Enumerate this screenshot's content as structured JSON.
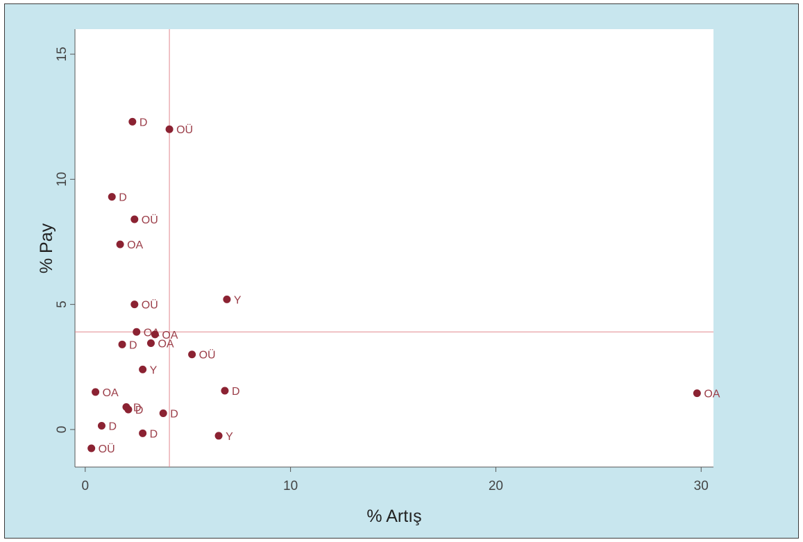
{
  "chart_data": {
    "type": "scatter",
    "xlabel": "% Artış",
    "ylabel": "% Pay",
    "xlim": [
      -0.5,
      30.6
    ],
    "ylim": [
      -1.5,
      16
    ],
    "xticks": [
      "0",
      "10",
      "20",
      "30"
    ],
    "xtick_values": [
      0,
      10,
      20,
      30
    ],
    "yticks": [
      "0",
      "5",
      "10",
      "15"
    ],
    "ytick_values": [
      0,
      5,
      10,
      15
    ],
    "grid": false,
    "reference_lines": {
      "x": 4.1,
      "y": 3.9
    },
    "colors": {
      "background": "#c8e6ee",
      "plot_background": "#ffffff",
      "marker": "#8b2232",
      "label": "#9b3d48",
      "reference_line": "#e2888e",
      "axis": "#555555",
      "text": "#222222",
      "frame": "#3a3a3a"
    },
    "points": [
      {
        "x": 2.3,
        "y": 12.3,
        "label": "D"
      },
      {
        "x": 4.1,
        "y": 12.0,
        "label": "OÜ"
      },
      {
        "x": 1.3,
        "y": 9.3,
        "label": "D"
      },
      {
        "x": 2.4,
        "y": 8.4,
        "label": "OÜ"
      },
      {
        "x": 1.7,
        "y": 7.4,
        "label": "OA"
      },
      {
        "x": 6.9,
        "y": 5.2,
        "label": "Y"
      },
      {
        "x": 2.4,
        "y": 5.0,
        "label": "OÜ"
      },
      {
        "x": 2.5,
        "y": 3.9,
        "label": "OA"
      },
      {
        "x": 3.4,
        "y": 3.8,
        "label": "OA"
      },
      {
        "x": 1.8,
        "y": 3.4,
        "label": "D"
      },
      {
        "x": 3.2,
        "y": 3.45,
        "label": "OA"
      },
      {
        "x": 5.2,
        "y": 3.0,
        "label": "OÜ"
      },
      {
        "x": 2.8,
        "y": 2.4,
        "label": "Y"
      },
      {
        "x": 0.5,
        "y": 1.5,
        "label": "OA"
      },
      {
        "x": 6.8,
        "y": 1.55,
        "label": "D"
      },
      {
        "x": 29.8,
        "y": 1.45,
        "label": "OA"
      },
      {
        "x": 2.0,
        "y": 0.9,
        "label": "D"
      },
      {
        "x": 2.1,
        "y": 0.8,
        "label": "D"
      },
      {
        "x": 3.8,
        "y": 0.65,
        "label": "D"
      },
      {
        "x": 0.8,
        "y": 0.15,
        "label": "D"
      },
      {
        "x": 2.8,
        "y": -0.15,
        "label": "D"
      },
      {
        "x": 6.5,
        "y": -0.25,
        "label": "Y"
      },
      {
        "x": 0.3,
        "y": -0.75,
        "label": "OÜ"
      }
    ]
  }
}
